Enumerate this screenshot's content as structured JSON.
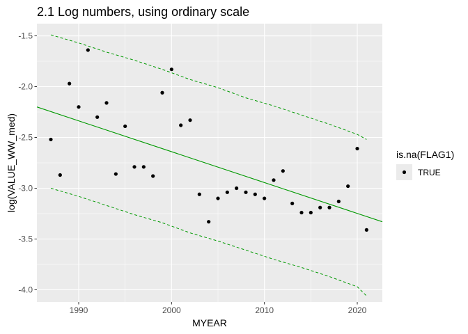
{
  "chart_data": {
    "type": "scatter",
    "title": "2.1 Log numbers, using ordinary scale",
    "xlabel": "MYEAR",
    "ylabel": "log(VALUE_WW_med)",
    "xlim": [
      1985.5,
      2022.7
    ],
    "ylim": [
      -4.12,
      -1.38
    ],
    "xticks": [
      1990,
      2000,
      2010,
      2020
    ],
    "yticks": [
      -1.5,
      -2.0,
      -2.5,
      -3.0,
      -3.5,
      -4.0
    ],
    "ytick_labels": [
      "-1.5",
      "-2.0",
      "-2.5",
      "-3.0",
      "-3.5",
      "-4.0"
    ],
    "grid": true,
    "legend": {
      "title": "is.na(FLAG1)",
      "entries": [
        "TRUE"
      ],
      "position": "right"
    },
    "colors": {
      "panel_bg": "#ebebeb",
      "grid": "#ffffff",
      "points": "#000000",
      "trend": "#009900"
    },
    "series": [
      {
        "x": [
          1987,
          1988,
          1989,
          1990,
          1991,
          1992,
          1993,
          1994,
          1995,
          1996,
          1997,
          1998,
          1999,
          2000,
          2001,
          2002,
          2003,
          2004,
          2005,
          2006,
          2007,
          2008,
          2009,
          2010,
          2011,
          2012,
          2013,
          2014,
          2015,
          2016,
          2017,
          2018,
          2019,
          2020,
          2021
        ],
        "y": [
          -2.52,
          -2.87,
          -1.97,
          -2.2,
          -1.64,
          -2.3,
          -2.16,
          -2.86,
          -2.39,
          -2.79,
          -2.79,
          -2.88,
          -2.06,
          -1.83,
          -2.38,
          -2.33,
          -3.06,
          -3.33,
          -3.1,
          -3.04,
          -3.0,
          -3.04,
          -3.06,
          -3.1,
          -2.92,
          -2.83,
          -3.15,
          -3.24,
          -3.24,
          -3.19,
          -3.19,
          -3.13,
          -2.98,
          -2.61,
          -3.41
        ]
      }
    ],
    "trend": {
      "x": [
        1985.5,
        2022.7
      ],
      "y": [
        -2.2,
        -3.33
      ]
    },
    "band_upper": {
      "x": [
        1987,
        1990,
        1993,
        1996,
        1999,
        2002,
        2005,
        2008,
        2011,
        2014,
        2017,
        2020,
        2021
      ],
      "y": [
        -1.49,
        -1.57,
        -1.66,
        -1.74,
        -1.83,
        -1.93,
        -2.01,
        -2.11,
        -2.19,
        -2.28,
        -2.37,
        -2.47,
        -2.52
      ]
    },
    "band_lower": {
      "x": [
        1987,
        1990,
        1993,
        1996,
        1999,
        2002,
        2005,
        2008,
        2011,
        2014,
        2017,
        2020,
        2021
      ],
      "y": [
        -3.0,
        -3.08,
        -3.17,
        -3.26,
        -3.34,
        -3.44,
        -3.52,
        -3.61,
        -3.7,
        -3.78,
        -3.87,
        -3.97,
        -4.06
      ]
    }
  }
}
